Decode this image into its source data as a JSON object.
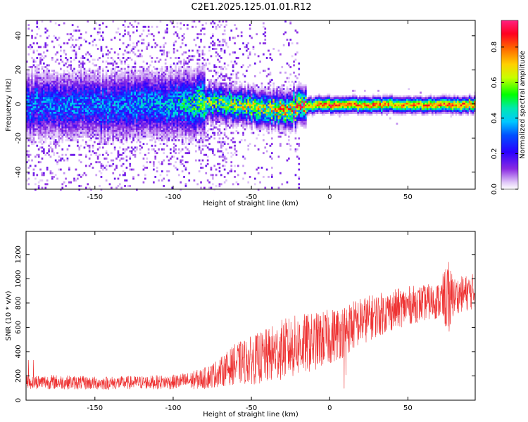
{
  "title": "C2E1.2025.125.01.01.R12",
  "colors": {
    "snr_line": "#ee3333",
    "spectrum_ridge": "#00d890",
    "spectrum_noise": "#6a00e8"
  },
  "chart_data": [
    {
      "type": "heatmap",
      "xlabel": "Height of straight line (km)",
      "ylabel": "Frequency (Hz)",
      "xlim": [
        -194,
        93
      ],
      "ylim": [
        -50,
        49
      ],
      "xticks": [
        -150,
        -100,
        -50,
        0,
        50
      ],
      "yticks": [
        -40,
        -20,
        0,
        20,
        40
      ],
      "colorbar": {
        "label": "Normalized spectral amplitude",
        "range": [
          0,
          0.95
        ],
        "ticks": [
          0.0,
          0.2,
          0.4,
          0.6,
          0.8
        ],
        "tick_labels": [
          "0.0",
          "0.2",
          "0.4",
          "0.6",
          "0.8"
        ],
        "colormap": "rainbow"
      },
      "ridge": {
        "description_points_x": [
          -194,
          -150,
          -100,
          -80,
          -60,
          -40,
          -30,
          -20,
          -10,
          0,
          10,
          30,
          50,
          70,
          93
        ],
        "center_freq_hz": [
          0,
          0,
          0,
          1,
          0,
          -2,
          -3,
          -1,
          0,
          0,
          0,
          0,
          0,
          0,
          0
        ],
        "max_amplitude": [
          0.3,
          0.3,
          0.35,
          0.5,
          0.55,
          0.6,
          0.65,
          0.7,
          0.75,
          0.85,
          0.8,
          0.8,
          0.75,
          0.8,
          0.8
        ]
      },
      "grid": false,
      "legend": "colorbar-right"
    },
    {
      "type": "line",
      "xlabel": "Height of straight line (km)",
      "ylabel": "SNR (10 * v/v)",
      "xlim": [
        -194,
        93
      ],
      "ylim": [
        0,
        1390
      ],
      "xticks": [
        -150,
        -100,
        -50,
        0,
        50
      ],
      "yticks": [
        0,
        200,
        400,
        600,
        800,
        1000,
        1200
      ],
      "series": [
        {
          "x": [
            -194,
            -175,
            -150,
            -125,
            -100,
            -90,
            -80,
            -70,
            -60,
            -50,
            -40,
            -30,
            -20,
            -10,
            0,
            10,
            20,
            30,
            40,
            50,
            60,
            70,
            76,
            80,
            93
          ],
          "mean": [
            150,
            150,
            140,
            145,
            150,
            160,
            180,
            230,
            300,
            330,
            360,
            420,
            450,
            480,
            520,
            580,
            650,
            700,
            740,
            780,
            800,
            820,
            850,
            860,
            900
          ],
          "spread": [
            60,
            60,
            55,
            55,
            60,
            70,
            90,
            120,
            170,
            200,
            230,
            250,
            260,
            240,
            230,
            220,
            200,
            180,
            170,
            160,
            150,
            150,
            300,
            150,
            150
          ]
        }
      ],
      "grid": false
    }
  ]
}
